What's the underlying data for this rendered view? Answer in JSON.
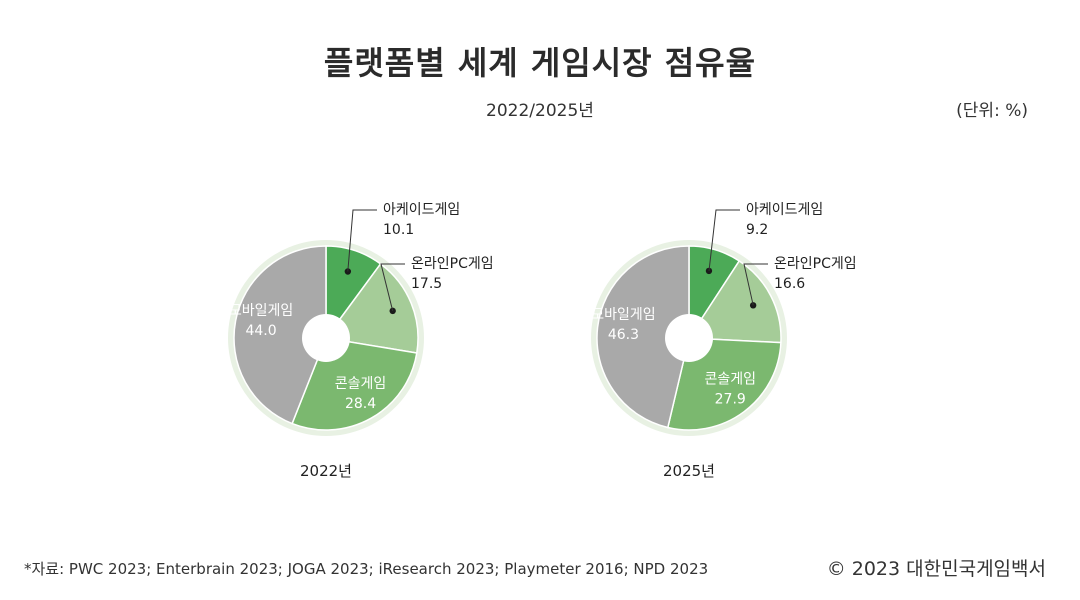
{
  "title": "플랫폼별 세계 게임시장 점유율",
  "subtitle": "2022/2025년",
  "unit": "(단위: %)",
  "source": "*자료: PWC 2023; Enterbrain 2023; JOGA 2023; iResearch 2023; Playmeter 2016; NPD 2023",
  "copyright": "© 2023 대한민국게임백서",
  "chart_data": [
    {
      "type": "pie",
      "year_label": "2022년",
      "slices": [
        {
          "name": "아케이드게임",
          "value": 10.1,
          "color": "#4caa57"
        },
        {
          "name": "온라인PC게임",
          "value": 17.5,
          "color": "#a5cc98"
        },
        {
          "name": "콘솔게임",
          "value": 28.4,
          "color": "#7bb86f"
        },
        {
          "name": "모바일게임",
          "value": 44.0,
          "color": "#a9a9a9"
        }
      ]
    },
    {
      "type": "pie",
      "year_label": "2025년",
      "slices": [
        {
          "name": "아케이드게임",
          "value": 9.2,
          "color": "#4caa57"
        },
        {
          "name": "온라인PC게임",
          "value": 16.6,
          "color": "#a5cc98"
        },
        {
          "name": "콘솔게임",
          "value": 27.9,
          "color": "#7bb86f"
        },
        {
          "name": "모바일게임",
          "value": 46.3,
          "color": "#a9a9a9"
        }
      ]
    }
  ]
}
